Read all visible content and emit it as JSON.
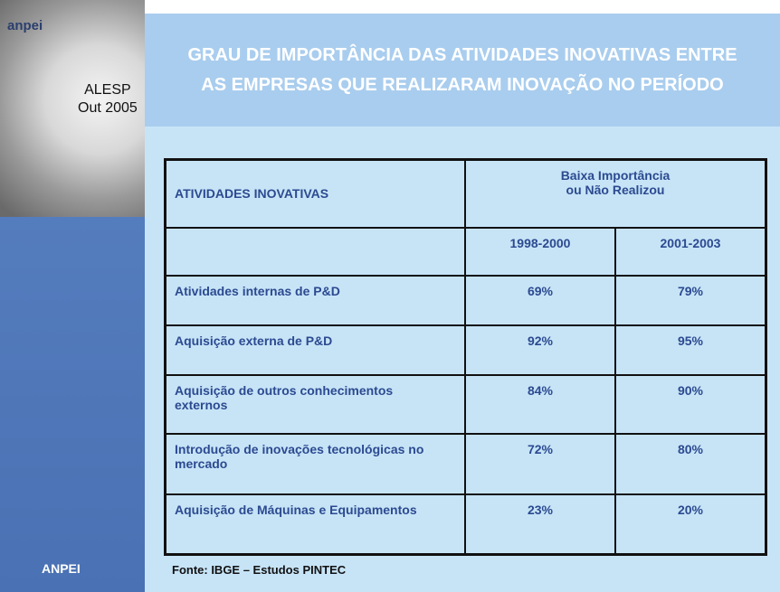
{
  "sidebar": {
    "logo": "anpei",
    "event": [
      "ALESP",
      "Out 2005"
    ],
    "footer": "ANPEI"
  },
  "header": {
    "title": [
      "GRAU DE IMPORTÂNCIA DAS ATIVIDADES INOVATIVAS ENTRE",
      "AS EMPRESAS QUE REALIZARAM INOVAÇÃO NO PERÍODO"
    ]
  },
  "table": {
    "column_header": "ATIVIDADES INOVATIVAS",
    "group_header": [
      "Baixa Importância",
      "ou Não Realizou"
    ],
    "periods": [
      "1998-2000",
      "2001-2003"
    ],
    "rows": [
      [
        "Atividades internas de P&D",
        "69%",
        "79%"
      ],
      [
        "Aquisição externa de P&D",
        "92%",
        "95%"
      ],
      [
        "Aquisição de outros conhecimentos externos",
        "84%",
        "90%"
      ],
      [
        "Introdução de inovações tecnológicas no mercado",
        "72%",
        "80%"
      ],
      [
        "Aquisição de Máquinas e Equipamentos",
        "23%",
        "20%"
      ]
    ]
  },
  "source": "Fonte: IBGE – Estudos PINTEC"
}
